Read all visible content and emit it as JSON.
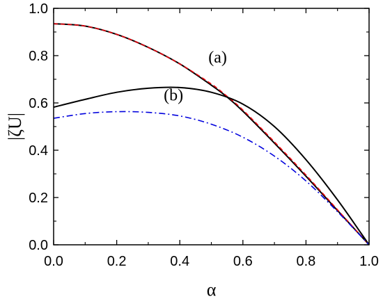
{
  "chart_data": {
    "type": "line",
    "xlabel": "α",
    "ylabel": "|ζU|",
    "xlim": [
      0.0,
      1.0
    ],
    "ylim": [
      0.0,
      1.0
    ],
    "xticks": [
      "0.0",
      "0.2",
      "0.4",
      "0.6",
      "0.8",
      "1.0"
    ],
    "yticks": [
      "0.0",
      "0.2",
      "0.4",
      "0.6",
      "0.8",
      "1.0"
    ],
    "grid": false,
    "series": [
      {
        "color": "#000000",
        "style": "solid",
        "x": [
          0.0,
          0.1,
          0.2,
          0.3,
          0.4,
          0.5,
          0.55,
          0.6,
          0.7,
          0.8,
          0.9,
          1.0
        ],
        "y": [
          0.935,
          0.925,
          0.89,
          0.835,
          0.765,
          0.675,
          0.625,
          0.565,
          0.43,
          0.29,
          0.145,
          0.0
        ]
      },
      {
        "color": "#e8000b",
        "style": "dashed",
        "x": [
          0.0,
          0.1,
          0.2,
          0.3,
          0.4,
          0.5,
          0.55,
          0.6,
          0.7,
          0.8,
          0.9,
          1.0
        ],
        "y": [
          0.935,
          0.925,
          0.89,
          0.835,
          0.765,
          0.68,
          0.628,
          0.57,
          0.435,
          0.295,
          0.148,
          0.0
        ]
      },
      {
        "color": "#000000",
        "style": "solid",
        "x": [
          0.0,
          0.1,
          0.2,
          0.3,
          0.4,
          0.5,
          0.6,
          0.7,
          0.8,
          0.9,
          1.0
        ],
        "y": [
          0.582,
          0.615,
          0.645,
          0.662,
          0.665,
          0.645,
          0.595,
          0.5,
          0.36,
          0.19,
          0.0
        ]
      },
      {
        "color": "#0000dd",
        "style": "dashdot",
        "x": [
          0.0,
          0.1,
          0.2,
          0.3,
          0.4,
          0.5,
          0.6,
          0.7,
          0.8,
          0.9,
          1.0
        ],
        "y": [
          0.535,
          0.555,
          0.563,
          0.56,
          0.545,
          0.51,
          0.455,
          0.375,
          0.27,
          0.14,
          0.0
        ]
      }
    ],
    "annotations": [
      {
        "text": "(a)",
        "x": 0.52,
        "y": 0.77
      },
      {
        "text": "(b)",
        "x": 0.38,
        "y": 0.61
      }
    ]
  }
}
